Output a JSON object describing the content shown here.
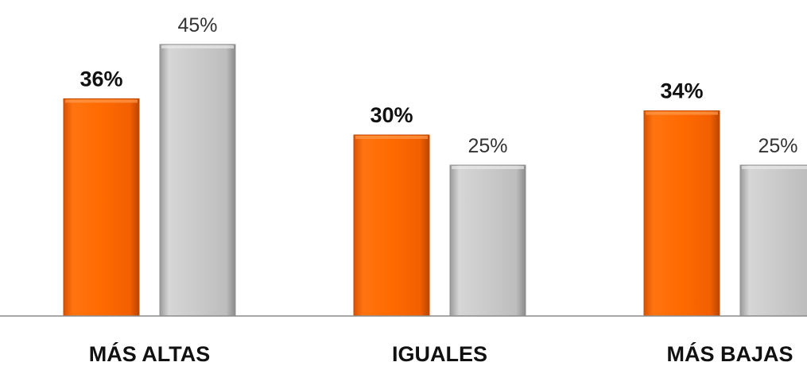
{
  "chart_data": {
    "type": "bar",
    "categories": [
      "MÁS ALTAS",
      "IGUALES",
      "MÁS BAJAS"
    ],
    "series": [
      {
        "values": [
          36,
          30,
          34
        ],
        "color": "#ff6600",
        "label_style": "bold"
      },
      {
        "values": [
          45,
          25,
          25
        ],
        "color": "#c6c6c6",
        "label_style": "normal"
      }
    ],
    "value_suffix": "%",
    "ylim": [
      0,
      50
    ],
    "grid": false,
    "legend": "none"
  }
}
